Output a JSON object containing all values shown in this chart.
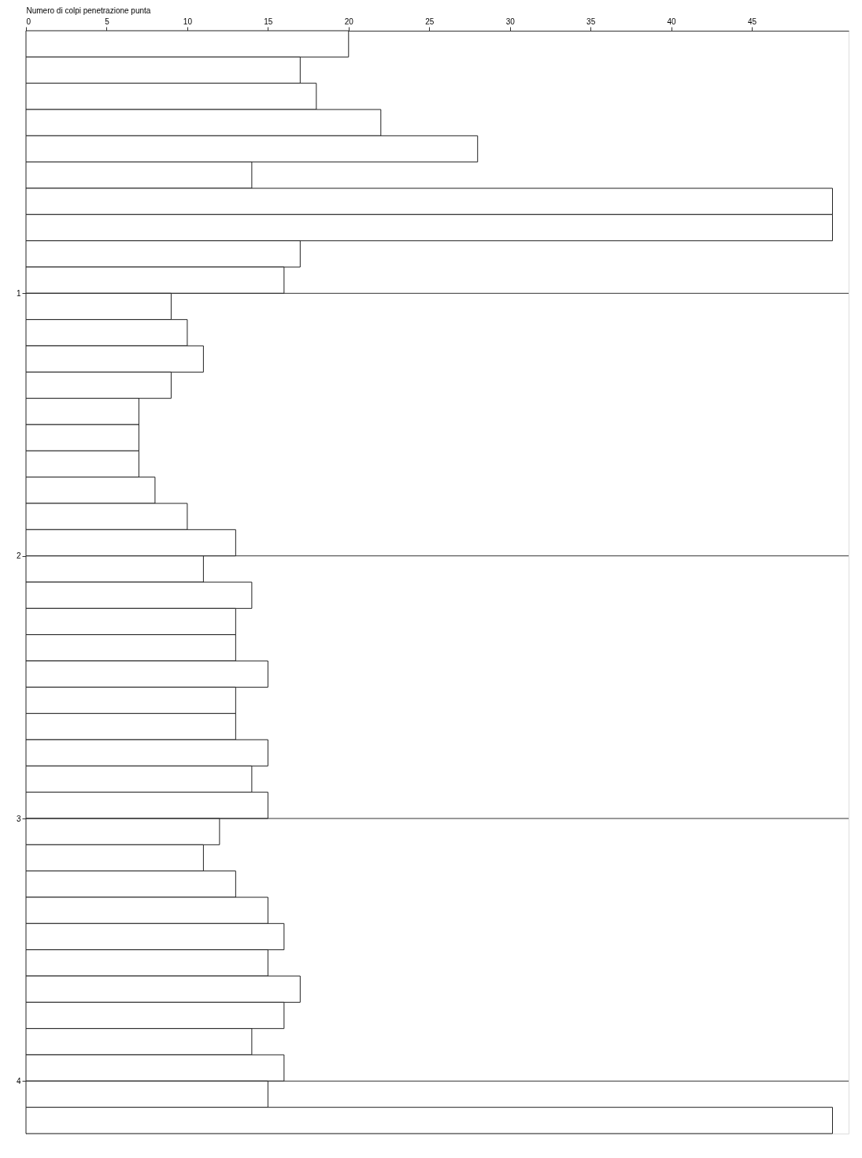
{
  "chart_data": {
    "type": "bar",
    "orientation": "horizontal",
    "xlabel": "Numero di colpi penetrazione punta",
    "x": [
      0.05,
      0.15,
      0.25,
      0.35,
      0.45,
      0.55,
      0.65,
      0.75,
      0.85,
      0.95,
      1.05,
      1.15,
      1.25,
      1.35,
      1.45,
      1.55,
      1.65,
      1.75,
      1.85,
      1.95,
      2.05,
      2.15,
      2.25,
      2.35,
      2.45,
      2.55,
      2.65,
      2.75,
      2.85,
      2.95,
      3.05,
      3.15,
      3.25,
      3.35,
      3.45,
      3.55,
      3.65,
      3.75,
      3.85,
      3.95,
      4.05,
      4.15
    ],
    "values": [
      20,
      17,
      18,
      22,
      28,
      14,
      50,
      50,
      17,
      16,
      9,
      10,
      11,
      9,
      7,
      7,
      7,
      8,
      10,
      13,
      11,
      14,
      13,
      13,
      15,
      13,
      13,
      15,
      14,
      15,
      12,
      11,
      13,
      15,
      16,
      15,
      17,
      16,
      14,
      16,
      15,
      50
    ],
    "color": "#ffffff",
    "xlim": [
      0,
      51
    ],
    "xticks": [
      0,
      5,
      10,
      15,
      20,
      25,
      30,
      35,
      40,
      45
    ],
    "ylim": [
      4.2,
      0
    ],
    "yticks": [
      1,
      2,
      3,
      4
    ],
    "ref_lines": [
      {
        "axis": "y",
        "value": 1
      },
      {
        "axis": "y",
        "value": 2
      },
      {
        "axis": "y",
        "value": 3
      },
      {
        "axis": "y",
        "value": 4
      }
    ]
  }
}
